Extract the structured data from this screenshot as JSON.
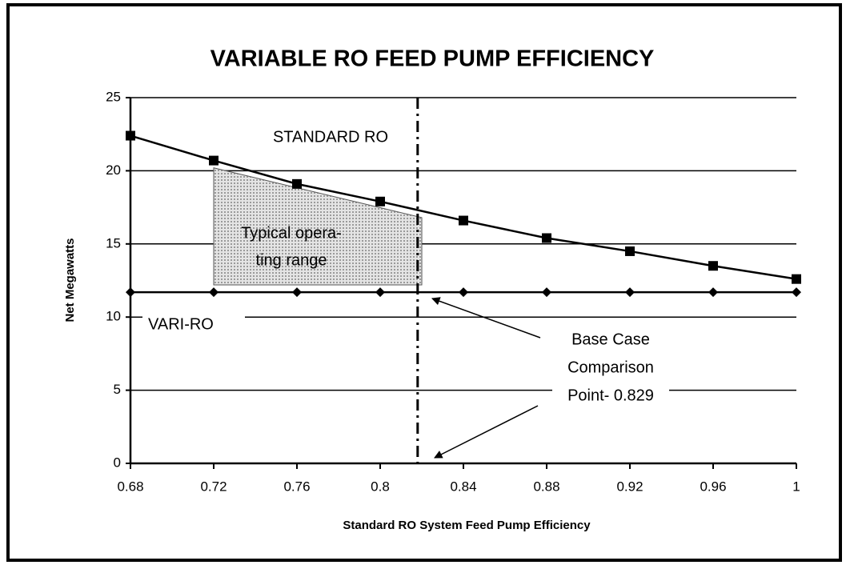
{
  "chart_data": {
    "type": "line",
    "title": "VARIABLE RO FEED PUMP EFFICIENCY",
    "x_label": "Standard RO System Feed Pump Efficiency",
    "y_label": "Net Megawatts",
    "x": [
      0.68,
      0.72,
      0.76,
      0.8,
      0.84,
      0.88,
      0.92,
      0.96,
      1
    ],
    "series": [
      {
        "name": "STANDARD RO",
        "color": "#000000",
        "marker": "square",
        "values": [
          22.4,
          20.7,
          19.1,
          17.9,
          16.6,
          15.4,
          14.5,
          13.5,
          12.6
        ]
      },
      {
        "name": "VARI-RO",
        "color": "#000000",
        "marker": "diamond",
        "values": [
          11.7,
          11.7,
          11.7,
          11.7,
          11.7,
          11.7,
          11.7,
          11.7,
          11.7
        ]
      }
    ],
    "xlim": [
      0.68,
      1
    ],
    "ylim": [
      0,
      25
    ],
    "xticks": [
      0.68,
      0.72,
      0.76,
      0.8,
      0.84,
      0.88,
      0.92,
      0.96,
      1
    ],
    "yticks": [
      0,
      5,
      10,
      15,
      20,
      25
    ],
    "grid": true,
    "reference_line_x": 0.818,
    "shaded_region": {
      "label_lines": [
        "Typical opera-",
        "ting range"
      ],
      "x": [
        0.72,
        0.82
      ],
      "y_top": [
        20.2,
        16.8
      ],
      "y_bottom": 12.2
    },
    "annotation_lines": [
      "Base Case",
      "Comparison",
      "Point- 0.829"
    ]
  }
}
